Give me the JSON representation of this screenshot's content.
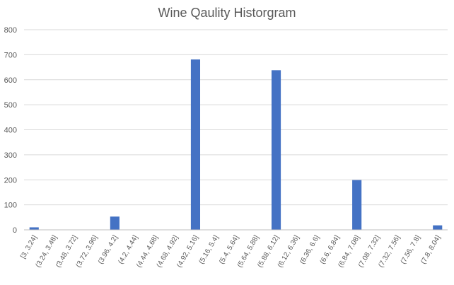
{
  "chart_data": {
    "type": "bar",
    "title": "Wine Qaulity Historgram",
    "xlabel": "",
    "ylabel": "",
    "categories": [
      "[3, 3.24]",
      "(3.24, 3.48]",
      "(3.48, 3.72]",
      "(3.72, 3.96]",
      "(3.96, 4.2]",
      "(4.2, 4.44]",
      "(4.44, 4.68]",
      "(4.68, 4.92]",
      "(4.92, 5.16]",
      "(5.16, 5.4]",
      "(5.4, 5.64]",
      "(5.64, 5.88]",
      "(5.88, 6.12]",
      "(6.12, 6.36]",
      "(6.36, 6.6]",
      "(6.6, 6.84]",
      "(6.84, 7.08]",
      "(7.08, 7.32]",
      "(7.32, 7.56]",
      "(7.56, 7.8]",
      "(7.8, 8.04]"
    ],
    "values": [
      10,
      0,
      0,
      0,
      53,
      0,
      0,
      0,
      681,
      0,
      0,
      0,
      638,
      0,
      0,
      0,
      199,
      0,
      0,
      0,
      18
    ],
    "ylim": [
      0,
      800
    ],
    "yticks": [
      0,
      100,
      200,
      300,
      400,
      500,
      600,
      700,
      800
    ],
    "grid": true,
    "legend": "none",
    "bar_color": "#4472C4",
    "grid_color": "#D9D9D9",
    "axis_color": "#BFBFBF"
  }
}
